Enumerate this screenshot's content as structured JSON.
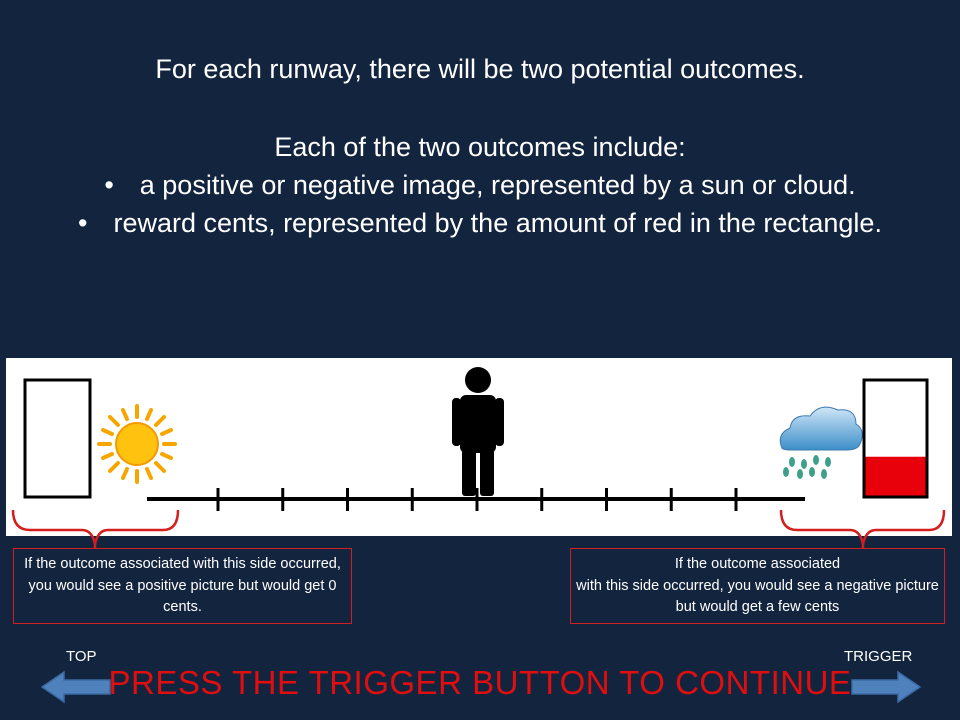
{
  "intro": {
    "line1": "For each runway, there will be two potential outcomes.",
    "line2": "Each of the two outcomes include:",
    "bullet_char": "•",
    "bullets": [
      "a positive or negative image, represented by a sun or cloud.",
      "reward cents, represented by the amount of red in the rectangle."
    ]
  },
  "scene": {
    "left_outcome": {
      "image_icon": "sun-icon",
      "reward_fill_fraction": 0.0
    },
    "right_outcome": {
      "image_icon": "rain-cloud-icon",
      "reward_fill_fraction": 0.34
    },
    "figure_icon": "person-icon",
    "runway_ticks": 9,
    "colors": {
      "reward_fill": "#e8000b",
      "bracket": "#d31f1f",
      "background": "#13243f"
    }
  },
  "notes": {
    "left": "If the outcome associated with this side occurred, you would see a positive picture but would get 0 cents.",
    "right_line1": "If the outcome associated",
    "right_line2": "with this side occurred, you would see a negative picture but would get a few cents"
  },
  "nav": {
    "top_label": "TOP",
    "trigger_label": "TRIGGER",
    "continue_text": "PRESS THE TRIGGER BUTTON TO CONTINUE",
    "arrow_color": "#4f81bd"
  }
}
